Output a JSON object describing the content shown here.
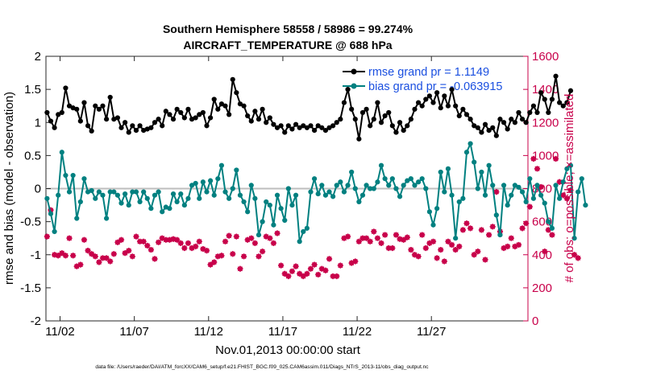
{
  "chart_data": {
    "type": "line",
    "title": "Southern Hemisphere 58558 / 58986 = 99.274%",
    "subtitle": "AIRCRAFT_TEMPERATURE @ 688 hPa",
    "xlabel": "Nov.01,2013 00:00:00 start",
    "ylabel": "rmse and bias (model - observation)",
    "y2label": "# of obs: o=possible; ×=assimilated",
    "xlim": [
      0.55,
      33.0
    ],
    "ylim": [
      -2,
      2
    ],
    "y2lim": [
      0,
      1600
    ],
    "x_ticks": [
      1.5,
      6.5,
      11.5,
      16.5,
      21.5,
      26.5
    ],
    "x_tick_labels": [
      "11/02",
      "11/07",
      "11/12",
      "11/17",
      "11/22",
      "11/27"
    ],
    "y_ticks": [
      -2,
      -1.5,
      -1,
      -0.5,
      0,
      0.5,
      1,
      1.5,
      2
    ],
    "y_tick_labels": [
      "-2",
      "-1.5",
      "-1",
      "-0.5",
      "0",
      "0.5",
      "1",
      "1.5",
      "2"
    ],
    "y2_ticks": [
      0,
      200,
      400,
      600,
      800,
      1000,
      1200,
      1400,
      1600
    ],
    "y2_tick_labels": [
      "0",
      "200",
      "400",
      "600",
      "800",
      "1000",
      "1200",
      "1400",
      "1600"
    ],
    "x_step_days": 0.25,
    "legend_position": "top-right",
    "legend": [
      {
        "label": "rmse grand pr = 1.1149",
        "color": "#000000"
      },
      {
        "label": "bias grand pr = -0.063915",
        "color": "#008080"
      }
    ],
    "series": [
      {
        "name": "rmse",
        "axis": "left",
        "color": "#000000",
        "marker": "dot",
        "x_start": 0.625,
        "values": [
          1.15,
          1.02,
          0.92,
          1.12,
          1.15,
          1.52,
          1.25,
          1.22,
          1.2,
          1.02,
          1.3,
          0.95,
          0.87,
          1.25,
          1.2,
          1.25,
          1.05,
          1.38,
          1.05,
          1.07,
          0.92,
          1.0,
          0.85,
          0.95,
          0.88,
          0.95,
          0.88,
          0.9,
          0.92,
          1.0,
          1.05,
          0.95,
          1.17,
          1.12,
          1.05,
          1.2,
          1.15,
          1.07,
          1.2,
          1.05,
          1.07,
          1.12,
          1.15,
          0.95,
          1.07,
          1.35,
          1.2,
          1.28,
          1.25,
          1.12,
          1.65,
          1.45,
          1.28,
          1.25,
          1.1,
          1.02,
          1.17,
          1.05,
          1.2,
          1.0,
          1.07,
          0.97,
          0.92,
          0.95,
          0.85,
          0.95,
          0.9,
          0.97,
          0.92,
          0.95,
          0.92,
          0.95,
          0.88,
          0.95,
          0.92,
          0.88,
          0.92,
          0.95,
          1.0,
          1.05,
          1.3,
          1.5,
          1.2,
          1.05,
          0.75,
          1.15,
          1.2,
          0.95,
          1.05,
          1.3,
          1.0,
          1.1,
          1.15,
          0.95,
          0.85,
          1.0,
          0.88,
          0.95,
          1.05,
          1.2,
          1.3,
          1.25,
          1.35,
          1.4,
          1.3,
          1.45,
          1.22,
          1.4,
          1.25,
          1.5,
          1.25,
          1.1,
          1.2,
          1.12,
          1.05,
          0.95,
          0.92,
          0.85,
          0.97,
          0.88,
          0.92,
          0.8,
          1.05,
          1.0,
          0.9,
          1.05,
          1.0,
          1.15,
          1.05,
          1.0,
          1.15,
          1.25,
          1.15,
          1.45,
          1.35,
          1.15,
          1.35,
          1.7,
          1.3,
          1.25,
          1.3,
          1.48
        ]
      },
      {
        "name": "bias",
        "axis": "left",
        "color": "#008080",
        "marker": "dot",
        "x_start": 0.625,
        "values": [
          -0.15,
          -0.38,
          -0.65,
          -0.1,
          0.55,
          0.2,
          -0.05,
          0.2,
          -0.45,
          -0.2,
          0.15,
          -0.05,
          -0.03,
          -0.15,
          -0.05,
          -0.1,
          -0.45,
          -0.05,
          -0.05,
          -0.1,
          -0.22,
          -0.08,
          -0.25,
          -0.05,
          -0.05,
          -0.2,
          -0.05,
          -0.15,
          -0.3,
          -0.1,
          -0.05,
          -0.35,
          -0.28,
          -0.3,
          -0.08,
          -0.2,
          -0.08,
          -0.25,
          -0.15,
          0.05,
          0.08,
          -0.15,
          0.1,
          -0.05,
          0.12,
          -0.1,
          0.15,
          0.35,
          -0.05,
          -0.15,
          0.0,
          0.28,
          -0.1,
          -0.2,
          -0.35,
          0.05,
          -0.15,
          -0.7,
          -0.5,
          -0.2,
          -0.25,
          -0.55,
          -0.1,
          -0.3,
          -0.48,
          0.0,
          -0.25,
          -0.1,
          -0.8,
          -0.65,
          -0.6,
          -0.05,
          0.15,
          -0.08,
          0.05,
          -0.1,
          -0.05,
          -0.12,
          0.05,
          0.1,
          -0.05,
          0.05,
          0.25,
          0.0,
          -0.2,
          -0.1,
          0.05,
          0.0,
          0.0,
          0.1,
          0.35,
          0.15,
          0.05,
          0.15,
          0.0,
          -0.12,
          0.05,
          0.12,
          0.15,
          0.05,
          0.1,
          0.15,
          0.0,
          -0.35,
          -0.55,
          -0.3,
          0.25,
          -0.05,
          0.3,
          -0.1,
          -0.75,
          -0.2,
          -0.15,
          0.55,
          0.68,
          0.4,
          0.0,
          0.25,
          -0.1,
          0.35,
          0.05,
          -0.4,
          -0.7,
          0.05,
          -0.25,
          -0.1,
          0.05,
          0.02,
          -0.05,
          -0.2,
          0.15,
          -0.15,
          0.05,
          -0.1,
          -0.22,
          -0.5,
          -0.6,
          0.05,
          -0.15,
          0.1,
          0.3,
          0.35,
          -0.75,
          -0.05,
          0.15,
          -0.25
        ]
      },
      {
        "name": "# assimilated",
        "axis": "right",
        "color": "#c8004a",
        "marker": "star",
        "x_start": 0.625,
        "values": [
          510,
          670,
          400,
          395,
          410,
          395,
          500,
          395,
          330,
          340,
          490,
          425,
          405,
          390,
          355,
          380,
          380,
          360,
          405,
          475,
          490,
          410,
          425,
          390,
          510,
          480,
          480,
          455,
          430,
          375,
          475,
          500,
          490,
          490,
          495,
          490,
          470,
          440,
          470,
          440,
          450,
          480,
          435,
          425,
          340,
          355,
          390,
          395,
          480,
          515,
          405,
          510,
          315,
          390,
          490,
          500,
          470,
          390,
          420,
          510,
          500,
          470,
          530,
          335,
          285,
          270,
          300,
          330,
          285,
          270,
          285,
          315,
          340,
          280,
          315,
          305,
          375,
          270,
          270,
          335,
          500,
          510,
          350,
          360,
          480,
          500,
          500,
          480,
          540,
          500,
          470,
          520,
          440,
          440,
          520,
          495,
          490,
          505,
          430,
          400,
          390,
          520,
          440,
          470,
          480,
          380,
          430,
          360,
          480,
          460,
          430,
          450,
          550,
          590,
          560,
          400,
          420,
          550,
          370,
          520,
          570,
          780,
          540,
          440,
          450,
          500,
          450,
          460,
          560,
          590,
          690,
          980,
          920,
          810,
          420,
          550,
          520,
          980,
          840,
          760,
          740,
          790,
          400,
          380
        ]
      },
      {
        "name": "# possible",
        "axis": "right",
        "color": "#c8004a",
        "marker": "circle",
        "x_start": 0.625,
        "values": [
          510,
          670,
          400,
          395,
          410,
          395,
          500,
          395,
          330,
          340,
          490,
          425,
          405,
          390,
          355,
          380,
          380,
          360,
          405,
          475,
          490,
          410,
          425,
          390,
          510,
          480,
          480,
          455,
          430,
          375,
          475,
          500,
          490,
          490,
          495,
          490,
          470,
          440,
          470,
          440,
          450,
          480,
          435,
          425,
          340,
          355,
          390,
          395,
          480,
          515,
          405,
          510,
          315,
          390,
          490,
          500,
          470,
          390,
          420,
          510,
          500,
          470,
          530,
          335,
          285,
          270,
          300,
          330,
          285,
          270,
          285,
          315,
          340,
          280,
          315,
          305,
          375,
          270,
          270,
          335,
          500,
          510,
          350,
          360,
          480,
          500,
          500,
          480,
          540,
          500,
          470,
          520,
          440,
          440,
          520,
          495,
          490,
          505,
          430,
          400,
          390,
          520,
          440,
          470,
          480,
          380,
          430,
          360,
          480,
          460,
          430,
          450,
          550,
          590,
          560,
          400,
          420,
          550,
          370,
          520,
          570,
          780,
          540,
          440,
          450,
          500,
          450,
          460,
          560,
          590,
          690,
          980,
          920,
          810,
          420,
          550,
          520,
          980,
          840,
          760,
          740,
          790,
          400,
          380
        ]
      }
    ],
    "zero_line": 0
  },
  "footer": "data file: /Users/raeder/DAI/ATM_forcXX/CAM6_setup/f.e21.FHIST_BGC.f09_025.CAM6assim.011/Diags_NTrS_2013-11/obs_diag_output.nc"
}
